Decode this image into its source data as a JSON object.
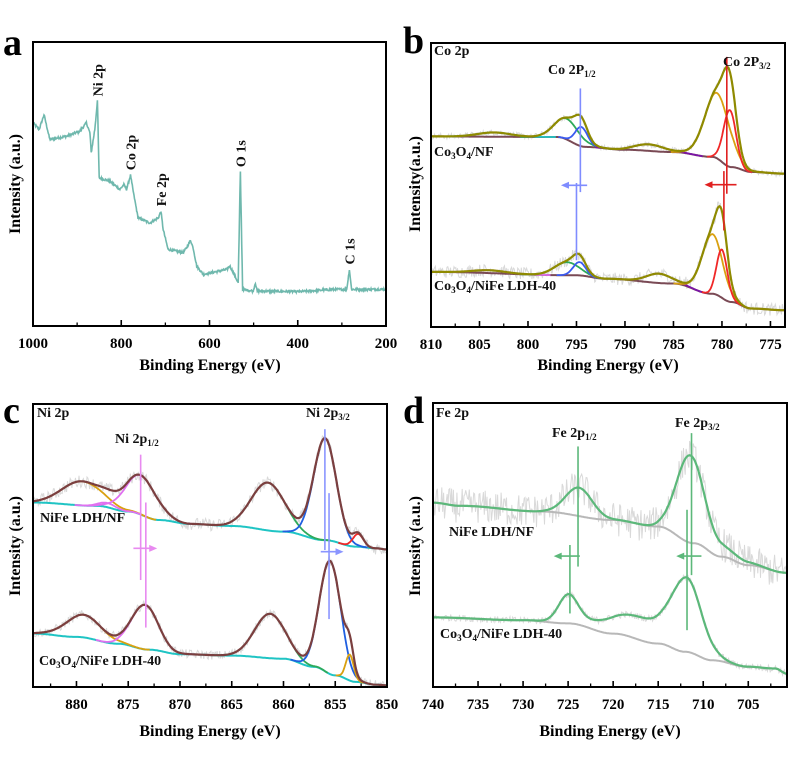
{
  "chart_data": [
    {
      "panel": "a",
      "type": "line",
      "xlabel": "Binding Energy (eV)",
      "ylabel": "Intensity (a.u.)",
      "xlim": [
        1000,
        200
      ],
      "ylim": [
        0,
        100
      ],
      "x_reversed": true,
      "y_ticks_shown": false,
      "xticks": [
        1000,
        800,
        600,
        400,
        200
      ],
      "xtick_labels": [
        "1000",
        "800",
        "600",
        "400",
        "200"
      ],
      "series": [
        {
          "color": "#6fb8ad",
          "x": [
            1000,
            986,
            975,
            962,
            924,
            894,
            879,
            871,
            868,
            860,
            854,
            850,
            826,
            803,
            794,
            788,
            779,
            773,
            762,
            735,
            716,
            710,
            705,
            694,
            660,
            652,
            643,
            637,
            629,
            614,
            561,
            554,
            546,
            535,
            530,
            525,
            501,
            496,
            492,
            395,
            319,
            289,
            283,
            278,
            200
          ],
          "y": [
            71.5,
            69.2,
            74.4,
            65.7,
            66.8,
            68.6,
            71.5,
            68.0,
            61.0,
            69.2,
            79.1,
            52.2,
            51.0,
            48.1,
            49.8,
            48.1,
            53.1,
            47.5,
            38.1,
            36.3,
            38.1,
            40.4,
            34.0,
            27.0,
            25.8,
            27.5,
            30.2,
            27.5,
            21.1,
            18.2,
            19.9,
            21.1,
            18.8,
            15.2,
            54.2,
            12.9,
            12.3,
            15.2,
            12.3,
            12.1,
            12.9,
            12.9,
            19.9,
            12.9,
            12.9
          ]
        }
      ],
      "annotations": [
        {
          "text": "Ni 2p",
          "x": 854
        },
        {
          "text": "Co 2p",
          "x": 779
        },
        {
          "text": "Fe 2p",
          "x": 710
        },
        {
          "text": "O 1s",
          "x": 530
        },
        {
          "text": "C 1s",
          "x": 283
        }
      ]
    },
    {
      "panel": "b",
      "type": "line",
      "title": "Co 2p",
      "xlabel": "Binding Energy (eV)",
      "ylabel": "Intensity(a.u.)",
      "xlim": [
        810,
        773.5
      ],
      "ylim": [
        0,
        100
      ],
      "x_reversed": true,
      "xticks": [
        810,
        805,
        800,
        795,
        790,
        785,
        780,
        775
      ],
      "xtick_labels": [
        "810",
        "805",
        "800",
        "795",
        "790",
        "785",
        "780",
        "775"
      ],
      "peak_labels": [
        {
          "main": "Co 2P",
          "sub": "1/2"
        },
        {
          "main": "Co 2P",
          "sub": "3/2"
        }
      ],
      "component_curves": true,
      "envelope_color": "#8f8a00",
      "baseline_color": "#7a4a55",
      "spectra": [
        {
          "label": [
            "Co",
            "3",
            "O",
            "4",
            "/NF"
          ],
          "baseline": {
            "x": [
              810,
              797,
              794,
              790,
              785,
              781,
              779,
              777,
              773.5
            ],
            "y": [
              67.1,
              66.9,
              63.4,
              62.4,
              61.6,
              59.9,
              56.3,
              54.6,
              54.0
            ]
          },
          "components": [
            {
              "center": 803.5,
              "height": 1.5,
              "fwhm": 4.0,
              "color": "#22c8c8"
            },
            {
              "center": 796.0,
              "height": 7.3,
              "fwhm": 3.0,
              "color": "#2eaa5a"
            },
            {
              "center": 794.5,
              "height": 6.8,
              "fwhm": 1.5,
              "color": "#3a5af0"
            },
            {
              "center": 787.5,
              "height": 2.3,
              "fwhm": 3.5,
              "color": "#7a14a8"
            },
            {
              "center": 780.5,
              "height": 23,
              "fwhm": 3.0,
              "color": "#d9a010"
            },
            {
              "center": 779.2,
              "height": 20,
              "fwhm": 1.5,
              "color": "#f02828"
            }
          ]
        },
        {
          "label": [
            "Co",
            "3",
            "O",
            "4",
            "/NiFe LDH-40"
          ],
          "baseline": {
            "x": [
              810,
              795,
              792,
              785,
              781,
              779,
              777,
              773.5
            ],
            "y": [
              19.4,
              18.2,
              17.0,
              15.3,
              11.7,
              8.8,
              6.5,
              5.9
            ]
          },
          "components": [
            {
              "center": 804.0,
              "height": 1.0,
              "fwhm": 4.0,
              "color": "#e070f0"
            },
            {
              "center": 796.0,
              "height": 4.6,
              "fwhm": 3.0,
              "color": "#2eaa5a"
            },
            {
              "center": 794.7,
              "height": 4.7,
              "fwhm": 1.5,
              "color": "#3a5af0"
            },
            {
              "center": 786.5,
              "height": 3.3,
              "fwhm": 3.0,
              "color": "#7a14a8"
            },
            {
              "center": 781.0,
              "height": 21,
              "fwhm": 2.5,
              "color": "#d9a010"
            },
            {
              "center": 780.0,
              "height": 17,
              "fwhm": 1.3,
              "color": "#f02828"
            }
          ]
        }
      ],
      "markers": [
        {
          "x": 794.6,
          "y": [
            47.5,
            84.0
          ],
          "color": "#7f8cff"
        },
        {
          "x": 795.0,
          "y": [
            23.5,
            50.7
          ],
          "color": "#7f8cff"
        },
        {
          "x": 779.5,
          "y": [
            46.9,
            95.1
          ],
          "color": "#e02020"
        },
        {
          "x": 779.8,
          "y": [
            34.0,
            54.9
          ],
          "color": "#e02020"
        }
      ],
      "shift_arrows": [
        {
          "from": 793.9,
          "to": 796.6,
          "y": 49.9,
          "color": "#7f8cff"
        },
        {
          "from": 778.5,
          "to": 781.8,
          "y": 50.1,
          "color": "#e02020"
        }
      ]
    },
    {
      "panel": "c",
      "type": "line",
      "title": "Ni 2p",
      "xlabel": "Binding Energy (eV)",
      "ylabel": "Intensity (a.u.)",
      "xlim": [
        884.2,
        850
      ],
      "ylim": [
        0,
        100
      ],
      "x_reversed": true,
      "xticks": [
        880,
        875,
        870,
        865,
        860,
        855,
        850
      ],
      "xtick_labels": [
        "880",
        "875",
        "870",
        "865",
        "860",
        "855",
        "850"
      ],
      "peak_labels": [
        {
          "main": "Ni 2p",
          "sub": "1/2"
        },
        {
          "main": "Ni 2p",
          "sub": "3/2"
        }
      ],
      "component_curves": true,
      "envelope_color": "#7b3f3f",
      "baseline_color": "#1fc4c4",
      "spectra": [
        {
          "label": [
            "NiFe LDH/NF"
          ],
          "baseline": {
            "x": [
              884.2,
              878,
              875,
              872,
              869,
              865,
              860,
              856,
              853,
              851,
              850
            ],
            "y": [
              65.2,
              64.0,
              62.0,
              59.0,
              57.6,
              56.9,
              54.9,
              51.9,
              49.6,
              49.0,
              48.6
            ]
          },
          "components": [
            {
              "center": 879.5,
              "height": 8.5,
              "fwhm": 4.5,
              "color": "#d9a010"
            },
            {
              "center": 877.0,
              "height": 1.5,
              "fwhm": 2.0,
              "color": "#e070f0"
            },
            {
              "center": 873.8,
              "height": 13.8,
              "fwhm": 3.5,
              "color": "#e070f0"
            },
            {
              "center": 861.5,
              "height": 16.9,
              "fwhm": 3.8,
              "color": "#2eaa5a"
            },
            {
              "center": 856.0,
              "height": 36,
              "fwhm": 2.6,
              "color": "#1f5fe0"
            },
            {
              "center": 852.8,
              "height": 4.5,
              "fwhm": 1.2,
              "color": "#f02828"
            }
          ]
        },
        {
          "label": [
            "Co",
            "3",
            "O",
            "4",
            "/NiFe LDH-40"
          ],
          "baseline": {
            "x": [
              884.2,
              880,
              876,
              873,
              870,
              865,
              860,
              857,
              855,
              853,
              851,
              850
            ],
            "y": [
              18.9,
              17.7,
              15.3,
              13.2,
              11.6,
              11.1,
              10.0,
              7.1,
              4.1,
              1.8,
              0.8,
              0.6
            ]
          },
          "components": [
            {
              "center": 879.3,
              "height": 8,
              "fwhm": 4.0,
              "color": "#d9a010"
            },
            {
              "center": 873.4,
              "height": 15.7,
              "fwhm": 3.0,
              "color": "#e070f0"
            },
            {
              "center": 861.3,
              "height": 15.7,
              "fwhm": 3.5,
              "color": "#2eaa5a"
            },
            {
              "center": 855.5,
              "height": 40,
              "fwhm": 2.4,
              "color": "#1f5fe0"
            },
            {
              "center": 853.6,
              "height": 9.2,
              "fwhm": 0.9,
              "color": "#d9a010"
            }
          ]
        }
      ],
      "markers": [
        {
          "x": 873.8,
          "y": [
            37.8,
            82.1
          ],
          "color": "#e88af0"
        },
        {
          "x": 873.3,
          "y": [
            21.0,
            65.2
          ],
          "color": "#e88af0"
        },
        {
          "x": 856.0,
          "y": [
            48.4,
            91.1
          ],
          "color": "#8a95ff"
        },
        {
          "x": 855.6,
          "y": [
            24.0,
            68.5
          ],
          "color": "#8a95ff"
        }
      ],
      "shift_arrows": [
        {
          "from": 874.5,
          "to": 872.2,
          "y": 49.0,
          "color": "#e88af0"
        },
        {
          "from": 856.4,
          "to": 854.2,
          "y": 47.8,
          "color": "#8a95ff"
        }
      ]
    },
    {
      "panel": "d",
      "type": "line",
      "title": "Fe 2p",
      "xlabel": "Binding Energy (eV)",
      "ylabel": "Intensity (a.u.)",
      "xlim": [
        740,
        700.7
      ],
      "ylim": [
        0,
        100
      ],
      "x_reversed": true,
      "xticks": [
        740,
        735,
        730,
        725,
        720,
        715,
        710,
        705
      ],
      "xtick_labels": [
        "740",
        "735",
        "730",
        "725",
        "720",
        "715",
        "710",
        "705"
      ],
      "peak_labels": [
        {
          "main": "Fe 2p",
          "sub": "1/2"
        },
        {
          "main": "Fe 2p",
          "sub": "3/2"
        }
      ],
      "component_curves": false,
      "envelope_color": "#5cb87a",
      "baseline_color": "#b8b8b8",
      "spectra": [
        {
          "label": [
            "NiFe LDH/NF"
          ],
          "baseline": {
            "x": [
              740,
              737,
              728,
              720,
              715,
              711,
              708,
              705,
              700.7
            ],
            "y": [
              64.9,
              63.8,
              61.8,
              58.8,
              56.5,
              50.6,
              45.9,
              42.9,
              40.2
            ]
          },
          "components": [
            {
              "center": 723.8,
              "height": 10,
              "fwhm": 3.5,
              "color": "#5cb87a"
            },
            {
              "center": 711.5,
              "height": 30,
              "fwhm": 3.5,
              "color": "#5cb87a"
            },
            {
              "center": 708.0,
              "height": 3,
              "fwhm": 5.0,
              "color": "#5cb87a"
            }
          ]
        },
        {
          "label": [
            "Co",
            "3",
            "O",
            "4",
            "/NiFe LDH-40"
          ],
          "baseline": {
            "x": [
              740,
              730,
              725,
              720,
              715,
              712,
              709,
              705,
              702,
              700.7
            ],
            "y": [
              24.5,
              23.5,
              22.4,
              18.8,
              15.3,
              12.4,
              9.4,
              7.1,
              6.5,
              4.7
            ]
          },
          "components": [
            {
              "center": 725.0,
              "height": 9.4,
              "fwhm": 2.5,
              "color": "#5cb87a"
            },
            {
              "center": 711.8,
              "height": 23,
              "fwhm": 3.8,
              "color": "#5cb87a"
            },
            {
              "center": 717.0,
              "height": 8,
              "fwhm": 9.0,
              "color": "#5cb87a"
            }
          ]
        }
      ],
      "markers": [
        {
          "x": 723.9,
          "y": [
            42.4,
            84.7
          ],
          "color": "#5cb87a"
        },
        {
          "x": 724.8,
          "y": [
            25.9,
            50.0
          ],
          "color": "#5cb87a"
        },
        {
          "x": 711.3,
          "y": [
            39.4,
            89.4
          ],
          "color": "#5cb87a"
        },
        {
          "x": 711.8,
          "y": [
            20.0,
            62.4
          ],
          "color": "#5cb87a"
        }
      ],
      "shift_arrows": [
        {
          "from": 723.7,
          "to": 726.6,
          "y": 46.1,
          "color": "#5cb87a"
        },
        {
          "from": 710.2,
          "to": 713.0,
          "y": 46.1,
          "color": "#5cb87a"
        }
      ]
    }
  ],
  "panel_letters": [
    "a",
    "b",
    "c",
    "d"
  ]
}
